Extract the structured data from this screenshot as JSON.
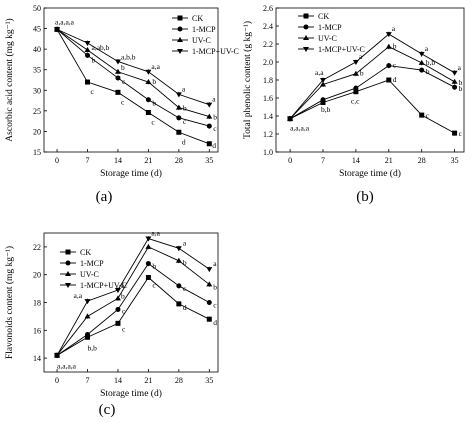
{
  "chart_data": [
    {
      "type": "line",
      "panel_label": "(a)",
      "xlabel": "Storage time (d)",
      "ylabel": "Ascorbic acid content (mg kg⁻¹)",
      "x": [
        0,
        7,
        14,
        21,
        28,
        35
      ],
      "xlim": [
        -3,
        37
      ],
      "ylim": [
        15,
        50
      ],
      "yticks": [
        15,
        20,
        25,
        30,
        35,
        40,
        45,
        50
      ],
      "legend": "top-right",
      "series": [
        {
          "name": "CK",
          "marker": "square",
          "values": [
            44.8,
            32.0,
            29.5,
            24.6,
            19.8,
            17.0
          ],
          "labels": [
            "a,a,a,a",
            "c",
            "c",
            "c",
            "d",
            "d"
          ]
        },
        {
          "name": "1-MCP",
          "marker": "circle",
          "values": [
            44.8,
            38.5,
            33.0,
            27.7,
            23.3,
            21.3
          ],
          "labels": [
            "",
            "b",
            "c",
            "b",
            "c",
            "c"
          ]
        },
        {
          "name": "UV-C",
          "marker": "triangle-up",
          "values": [
            44.8,
            39.8,
            34.5,
            32.0,
            25.8,
            23.6
          ],
          "labels": [
            "",
            "a,ab,b",
            "b",
            "b",
            "b",
            "b"
          ]
        },
        {
          "name": "1-MCP+UV-C",
          "marker": "triangle-down",
          "values": [
            44.8,
            41.5,
            37.0,
            34.5,
            29.0,
            26.5
          ],
          "labels": [
            "",
            "",
            "a,b,b",
            "a,a",
            "a",
            "a"
          ]
        }
      ]
    },
    {
      "type": "line",
      "panel_label": "(b)",
      "xlabel": "Storage time (d)",
      "ylabel": "Total phenolic content (g kg⁻¹)",
      "x": [
        0,
        7,
        14,
        21,
        28,
        35
      ],
      "xlim": [
        -3,
        37
      ],
      "ylim": [
        1.0,
        2.6
      ],
      "yticks": [
        1.0,
        1.2,
        1.4,
        1.6,
        1.8,
        2.0,
        2.2,
        2.4,
        2.6
      ],
      "legend": "top-left",
      "series": [
        {
          "name": "CK",
          "marker": "square",
          "values": [
            1.37,
            1.55,
            1.67,
            1.8,
            1.41,
            1.21
          ],
          "labels": [
            "a,a,a,a",
            "",
            "c,c",
            "d",
            "c",
            "c"
          ]
        },
        {
          "name": "1-MCP",
          "marker": "circle",
          "values": [
            1.37,
            1.58,
            1.71,
            1.96,
            1.91,
            1.72
          ],
          "labels": [
            "",
            "b,b",
            "",
            "c",
            "b",
            "b"
          ]
        },
        {
          "name": "UV-C",
          "marker": "triangle-up",
          "values": [
            1.37,
            1.75,
            1.87,
            2.17,
            1.99,
            1.78
          ],
          "labels": [
            "",
            "",
            "b",
            "b",
            "b,b",
            "b"
          ]
        },
        {
          "name": "1-MCP+UV-C",
          "marker": "triangle-down",
          "values": [
            1.37,
            1.8,
            2.0,
            2.31,
            2.09,
            1.88
          ],
          "labels": [
            "",
            "a,a",
            "a",
            "a",
            "a",
            "a"
          ]
        }
      ]
    },
    {
      "type": "line",
      "panel_label": "(c)",
      "xlabel": "Storage time (d)",
      "ylabel": "Flavonoids content (mg kg⁻¹)",
      "x": [
        0,
        7,
        14,
        21,
        28,
        35
      ],
      "xlim": [
        -3,
        37
      ],
      "ylim": [
        13,
        23
      ],
      "yticks": [
        14,
        16,
        18,
        20,
        22
      ],
      "legend": "top-left",
      "series": [
        {
          "name": "CK",
          "marker": "square",
          "values": [
            14.2,
            15.5,
            16.5,
            19.8,
            17.9,
            16.8
          ],
          "labels": [
            "a,a,a,a",
            "b,b",
            "c",
            "c",
            "d",
            "d"
          ]
        },
        {
          "name": "1-MCP",
          "marker": "circle",
          "values": [
            14.2,
            15.7,
            17.5,
            20.8,
            19.2,
            18.0
          ],
          "labels": [
            "",
            "",
            "c",
            "b",
            "c",
            "c"
          ]
        },
        {
          "name": "UV-C",
          "marker": "triangle-up",
          "values": [
            14.2,
            17.0,
            18.3,
            22.0,
            21.0,
            19.3
          ],
          "labels": [
            "",
            "",
            "b",
            "",
            "b",
            "b"
          ]
        },
        {
          "name": "1-MCP+UV-C",
          "marker": "triangle-down",
          "values": [
            14.2,
            18.1,
            18.9,
            22.6,
            21.9,
            20.4
          ],
          "labels": [
            "",
            "a,a",
            "a",
            "a,a",
            "a",
            "a"
          ]
        }
      ]
    }
  ]
}
